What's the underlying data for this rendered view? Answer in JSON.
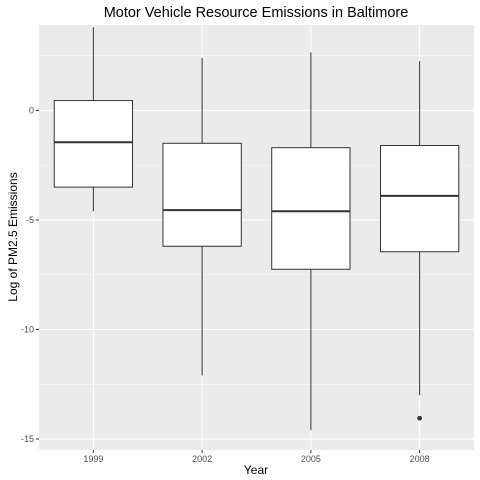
{
  "chart_data": {
    "type": "boxplot",
    "title": "Motor Vehicle Resource Emissions in Baltimore",
    "xlabel": "Year",
    "ylabel": "Log of PM2.5 Emissions",
    "categories": [
      "1999",
      "2002",
      "2005",
      "2008"
    ],
    "ylim": [
      -15.5,
      3.9
    ],
    "yticks": [
      0,
      -5,
      -10,
      -15
    ],
    "ytick_labels": [
      "0",
      "-5",
      "-10",
      "-15"
    ],
    "boxes": [
      {
        "category": "1999",
        "q1": -3.5,
        "median": -1.45,
        "q3": 0.45,
        "whisker_low": -4.6,
        "whisker_high": 3.8,
        "outliers": []
      },
      {
        "category": "2002",
        "q1": -6.2,
        "median": -4.55,
        "q3": -1.5,
        "whisker_low": -12.1,
        "whisker_high": 2.4,
        "outliers": []
      },
      {
        "category": "2005",
        "q1": -7.25,
        "median": -4.6,
        "q3": -1.7,
        "whisker_low": -14.6,
        "whisker_high": 2.65,
        "outliers": []
      },
      {
        "category": "2008",
        "q1": -6.45,
        "median": -3.9,
        "q3": -1.6,
        "whisker_low": -13.0,
        "whisker_high": 2.25,
        "outliers": [
          -14.05
        ]
      }
    ],
    "grid": true,
    "legend": "none",
    "colors": {
      "panel": "#ebebeb",
      "grid_major": "#ffffff",
      "box_fill": "#ffffff",
      "box_stroke": "#333333",
      "tick": "#333333",
      "tick_label": "#4d4d4d",
      "text": "#000000"
    }
  }
}
